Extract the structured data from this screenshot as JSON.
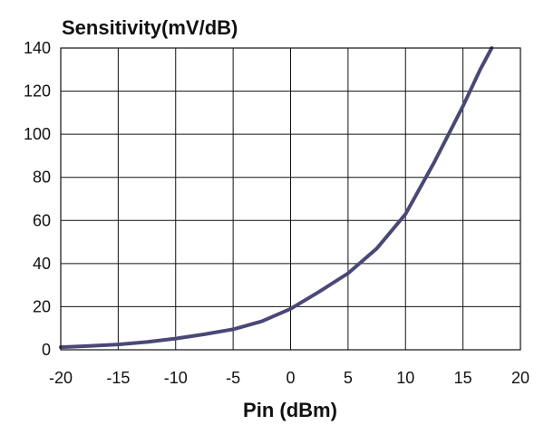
{
  "chart_data": {
    "type": "line",
    "title": "Sensitivity(mV/dB)",
    "xlabel": "Pin (dBm)",
    "ylabel": "",
    "xlim": [
      -20,
      20
    ],
    "ylim": [
      0,
      140
    ],
    "xticks": [
      "-20",
      "-15",
      "-10",
      "-5",
      "0",
      "5",
      "10",
      "15",
      "20"
    ],
    "yticks": [
      "0",
      "20",
      "40",
      "60",
      "80",
      "100",
      "120",
      "140"
    ],
    "grid": true,
    "series": [
      {
        "color": "#4a4876",
        "x": [
          -20,
          -17.5,
          -15,
          -12.5,
          -10,
          -7.5,
          -5,
          -2.5,
          0,
          2.5,
          5,
          7.5,
          10,
          12.5,
          15,
          16.5,
          17.5
        ],
        "y": [
          1.2,
          1.8,
          2.5,
          3.6,
          5.2,
          7.2,
          9.5,
          13.2,
          19,
          27,
          35.5,
          47,
          63,
          87,
          113,
          130,
          140
        ]
      }
    ]
  }
}
